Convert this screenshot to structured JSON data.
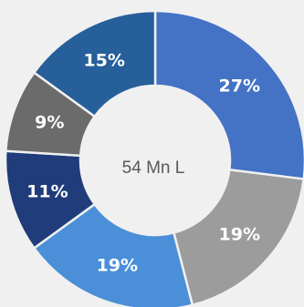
{
  "chart_data": {
    "type": "pie",
    "variant": "donut",
    "center_label": "54 Mn L",
    "slices": [
      {
        "label": "27%",
        "value": 27,
        "color": "#4472c4"
      },
      {
        "label": "19%",
        "value": 19,
        "color": "#9c9c9c"
      },
      {
        "label": "19%",
        "value": 19,
        "color": "#4a8fd8"
      },
      {
        "label": "11%",
        "value": 11,
        "color": "#203c7a"
      },
      {
        "label": "9%",
        "value": 9,
        "color": "#6b6b6b"
      },
      {
        "label": "15%",
        "value": 15,
        "color": "#265f9a"
      }
    ]
  }
}
